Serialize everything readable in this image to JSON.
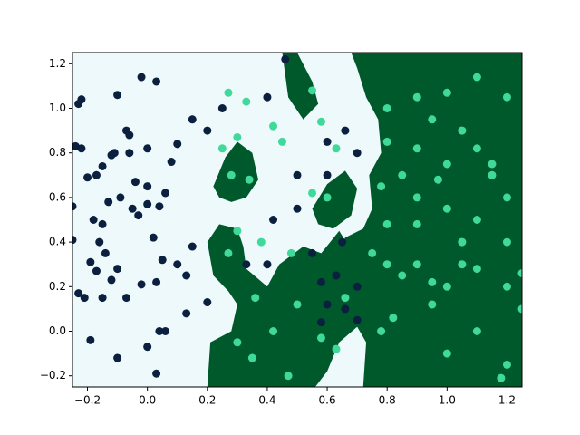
{
  "chart_data": {
    "type": "scatter",
    "xlim": [
      -0.25,
      1.25
    ],
    "ylim": [
      -0.25,
      1.25
    ],
    "xticks": [
      {
        "value": -0.2,
        "label": "−0.2"
      },
      {
        "value": 0,
        "label": "0.0"
      },
      0.2,
      0.4,
      0.6,
      0.8,
      {
        "value": 1,
        "label": "1.0"
      },
      1.2
    ],
    "yticks": [
      {
        "value": -0.2,
        "label": "−0.2"
      },
      {
        "value": 0,
        "label": "0.0"
      },
      0.2,
      0.4,
      0.6,
      0.8,
      {
        "value": 1,
        "label": "1.0"
      },
      1.2
    ],
    "grid": false,
    "background": "#eef9fc",
    "region_color": "#00592a",
    "regions": [
      {
        "x": [
          0.68,
          1.25,
          1.25,
          0.72,
          0.73,
          0.7,
          0.64,
          0.6,
          0.56,
          0.2,
          0.21,
          0.28,
          0.3,
          0.27,
          0.22,
          0.2,
          0.24,
          0.3,
          0.32,
          0.33,
          0.4,
          0.44,
          0.52,
          0.58,
          0.64,
          0.7,
          0.72,
          0.66,
          0.62,
          0.55,
          0.5,
          0.46,
          0.44,
          0.4,
          0.36,
          0.37,
          0.42,
          0.48,
          0.53,
          0.58,
          0.63,
          0.66,
          0.72,
          0.75,
          0.74,
          0.78,
          0.77,
          0.73,
          0.7
        ],
        "y": [
          1.25,
          1.25,
          -0.25,
          -0.25,
          -0.05,
          0.02,
          -0.05,
          -0.18,
          -0.25,
          -0.25,
          -0.05,
          0.0,
          0.12,
          0.18,
          0.25,
          0.4,
          0.48,
          0.46,
          0.38,
          0.28,
          0.2,
          0.3,
          0.38,
          0.35,
          0.45,
          0.32,
          0.18,
          0.15,
          0.2,
          0.1,
          0.22,
          0.12,
          -0.05,
          -0.12,
          -0.05,
          0.1,
          0.18,
          0.28,
          0.26,
          0.2,
          0.32,
          0.42,
          0.46,
          0.55,
          0.7,
          0.8,
          0.95,
          1.05,
          1.18
        ]
      },
      {
        "x": [
          0.22,
          0.26,
          0.3,
          0.35,
          0.37,
          0.33,
          0.28,
          0.24
        ],
        "y": [
          0.65,
          0.78,
          0.85,
          0.8,
          0.68,
          0.6,
          0.58,
          0.6
        ]
      },
      {
        "x": [
          0.45,
          0.5,
          0.55,
          0.57,
          0.52,
          0.47
        ],
        "y": [
          1.25,
          1.25,
          1.12,
          1.02,
          0.95,
          1.05
        ]
      },
      {
        "x": [
          0.55,
          0.6,
          0.66,
          0.7,
          0.68,
          0.62,
          0.57
        ],
        "y": [
          0.55,
          0.66,
          0.72,
          0.64,
          0.52,
          0.46,
          0.48
        ]
      }
    ],
    "series": [
      {
        "color": "#0b1f3f",
        "x": [
          -0.23,
          -0.22,
          -0.1,
          -0.02,
          0.03,
          -0.07,
          -0.06,
          -0.15,
          -0.12,
          -0.24,
          -0.22,
          -0.2,
          -0.17,
          -0.11,
          -0.06,
          0.0,
          0.1,
          0.08,
          -0.04,
          0.0,
          -0.25,
          -0.18,
          -0.15,
          -0.13,
          -0.09,
          -0.05,
          -0.03,
          0.0,
          0.04,
          0.06,
          -0.25,
          -0.16,
          -0.14,
          -0.19,
          -0.17,
          -0.1,
          -0.12,
          -0.23,
          -0.21,
          -0.15,
          -0.07,
          -0.02,
          0.03,
          0.02,
          0.05,
          0.1,
          0.13,
          0.15,
          0.04,
          0.06,
          0.0,
          -0.19,
          -0.1,
          0.03,
          0.13,
          0.2,
          0.2,
          0.15,
          0.25,
          0.4,
          0.46,
          0.5,
          0.6,
          0.5,
          0.42,
          0.55,
          0.58,
          0.6,
          0.63,
          0.65,
          0.7,
          0.7,
          0.66,
          0.58,
          0.4,
          0.33,
          0.6,
          0.7,
          0.66
        ],
        "values": [
          1.02,
          1.04,
          1.06,
          1.14,
          1.12,
          0.9,
          0.88,
          0.74,
          0.79,
          0.83,
          0.82,
          0.69,
          0.7,
          0.8,
          0.8,
          0.82,
          0.84,
          0.76,
          0.67,
          0.65,
          0.56,
          0.5,
          0.48,
          0.58,
          0.6,
          0.55,
          0.52,
          0.57,
          0.56,
          0.62,
          0.41,
          0.4,
          0.35,
          0.31,
          0.27,
          0.28,
          0.23,
          0.17,
          0.15,
          0.15,
          0.15,
          0.21,
          0.22,
          0.42,
          0.32,
          0.3,
          0.25,
          0.38,
          0.0,
          0.0,
          -0.07,
          -0.04,
          -0.12,
          -0.19,
          0.08,
          0.13,
          0.9,
          0.95,
          1.0,
          1.05,
          1.22,
          0.7,
          0.7,
          0.55,
          0.5,
          0.35,
          0.22,
          0.12,
          0.25,
          0.4,
          0.2,
          0.05,
          0.1,
          0.04,
          0.3,
          0.3,
          0.85,
          0.8,
          0.9
        ]
      },
      {
        "color": "#3fd99a",
        "x": [
          0.27,
          0.33,
          0.55,
          0.25,
          0.3,
          0.34,
          0.28,
          0.42,
          0.45,
          0.58,
          0.63,
          0.6,
          0.55,
          0.38,
          0.3,
          0.27,
          0.36,
          0.48,
          0.5,
          0.42,
          0.3,
          0.35,
          0.47,
          0.58,
          0.63,
          0.66,
          0.75,
          0.8,
          0.85,
          0.9,
          0.95,
          1.0,
          1.05,
          1.1,
          1.2,
          1.25,
          1.25,
          1.1,
          0.95,
          0.82,
          0.78,
          1.0,
          1.2,
          1.18,
          0.8,
          0.9,
          1.0,
          1.1,
          1.2,
          0.95,
          1.05,
          0.9,
          0.8,
          1.1,
          1.15,
          1.0,
          0.85,
          0.78,
          0.9,
          1.0,
          1.1,
          1.2,
          0.9,
          0.8,
          1.05,
          1.2,
          1.15,
          0.97
        ],
        "values": [
          1.07,
          1.03,
          1.08,
          0.82,
          0.87,
          0.68,
          0.7,
          0.92,
          0.85,
          0.94,
          0.82,
          0.6,
          0.62,
          0.4,
          0.45,
          0.35,
          0.15,
          0.35,
          0.12,
          0.0,
          -0.05,
          -0.12,
          -0.2,
          -0.03,
          -0.08,
          0.15,
          0.35,
          0.3,
          0.25,
          0.3,
          0.22,
          0.2,
          0.3,
          0.28,
          0.2,
          0.26,
          0.1,
          0.0,
          0.12,
          0.06,
          0.0,
          -0.1,
          -0.15,
          -0.21,
          1.0,
          1.05,
          1.07,
          1.14,
          1.05,
          0.95,
          0.9,
          0.82,
          0.85,
          0.82,
          0.75,
          0.75,
          0.7,
          0.65,
          0.6,
          0.55,
          0.5,
          0.6,
          0.48,
          0.48,
          0.4,
          0.4,
          0.7,
          0.68
        ]
      }
    ]
  }
}
